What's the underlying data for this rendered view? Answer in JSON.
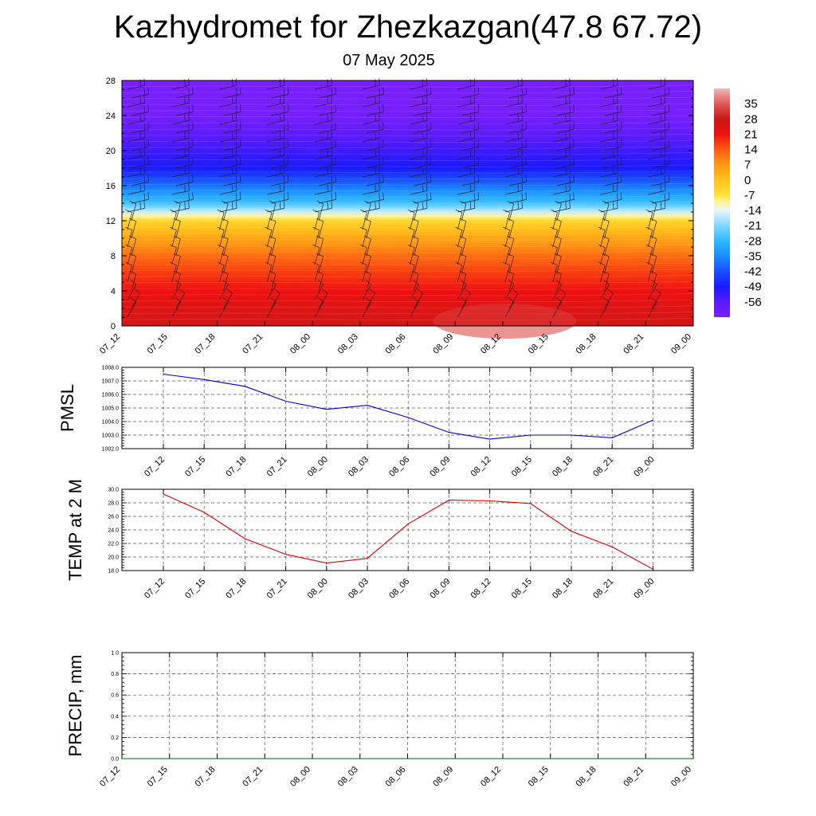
{
  "header": {
    "title": "Kazhydromet for Zhezkazgan(47.8 67.72)",
    "subtitle": "07 May 2025"
  },
  "chart_data": [
    {
      "type": "heatmap",
      "x": [
        "07_12",
        "07_15",
        "07_18",
        "07_21",
        "08_00",
        "08_03",
        "08_06",
        "08_09",
        "08_12",
        "08_15",
        "08_18",
        "08_21",
        "09_00"
      ],
      "y_ticks": [
        0,
        4,
        8,
        12,
        16,
        20,
        24,
        28
      ],
      "ylim": [
        0,
        28
      ],
      "colorbar_labels": [
        35,
        28,
        21,
        14,
        7,
        0,
        -7,
        -14,
        -21,
        -28,
        -35,
        -42,
        -49,
        -56
      ],
      "colorbar_range": [
        -63,
        42
      ],
      "temperature_profile": [
        {
          "y": 0,
          "value": 26
        },
        {
          "y": 2,
          "value": 24
        },
        {
          "y": 4,
          "value": 21
        },
        {
          "y": 6,
          "value": 17
        },
        {
          "y": 8,
          "value": 12
        },
        {
          "y": 10,
          "value": 5
        },
        {
          "y": 12,
          "value": -4
        },
        {
          "y": 13,
          "value": -16
        },
        {
          "y": 14,
          "value": -26
        },
        {
          "y": 16,
          "value": -38
        },
        {
          "y": 18,
          "value": -49
        },
        {
          "y": 20,
          "value": -53
        },
        {
          "y": 22,
          "value": -57
        },
        {
          "y": 24,
          "value": -62
        },
        {
          "y": 28,
          "value": -63
        }
      ],
      "wind_barbs": true,
      "colors": {
        "warm": "#e8001a",
        "cold": "#7a1fff"
      }
    },
    {
      "type": "line",
      "ylabel": "PMSL",
      "x": [
        "07_12",
        "07_15",
        "07_18",
        "07_21",
        "08_00",
        "08_03",
        "08_06",
        "08_09",
        "08_12",
        "08_15",
        "08_18",
        "08_21",
        "09_00"
      ],
      "ylim": [
        1002.0,
        1008.0
      ],
      "y_ticks": [
        "1002.0",
        "1003.0",
        "1004.0",
        "1005.0",
        "1006.0",
        "1007.0",
        "1008.0"
      ],
      "series": [
        {
          "values": [
            1007.5,
            1007.1,
            1006.6,
            1005.5,
            1004.9,
            1005.2,
            1004.3,
            1003.2,
            1002.7,
            1003.0,
            1003.0,
            1002.8,
            1004.1
          ],
          "color": "#0000cc"
        }
      ]
    },
    {
      "type": "line",
      "ylabel": "TEMP at 2 M",
      "x": [
        "07_12",
        "07_15",
        "07_18",
        "07_21",
        "08_00",
        "08_03",
        "08_06",
        "08_09",
        "08_12",
        "08_15",
        "08_18",
        "08_21",
        "09_00"
      ],
      "ylim": [
        18.0,
        30.0
      ],
      "y_ticks": [
        "18.0",
        "20.0",
        "22.0",
        "24.0",
        "26.0",
        "28.0",
        "30.0"
      ],
      "series": [
        {
          "values": [
            29.3,
            26.6,
            22.7,
            20.4,
            19.1,
            19.8,
            24.9,
            28.4,
            28.3,
            27.9,
            23.8,
            21.5,
            18.2
          ],
          "color": "#dd0000"
        }
      ]
    },
    {
      "type": "line",
      "ylabel": "PRECIP, mm",
      "x": [
        "07_12",
        "07_15",
        "07_18",
        "07_21",
        "08_00",
        "08_03",
        "08_06",
        "08_09",
        "08_12",
        "08_15",
        "08_18",
        "08_21",
        "09_00"
      ],
      "ylim": [
        0.0,
        1.0
      ],
      "y_ticks": [
        "0.0",
        "0.2",
        "0.4",
        "0.6",
        "0.8",
        "1.0"
      ],
      "series": [
        {
          "values": [
            0,
            0,
            0,
            0,
            0,
            0,
            0,
            0,
            0,
            0,
            0,
            0,
            0
          ],
          "color": "#006400"
        }
      ]
    }
  ]
}
